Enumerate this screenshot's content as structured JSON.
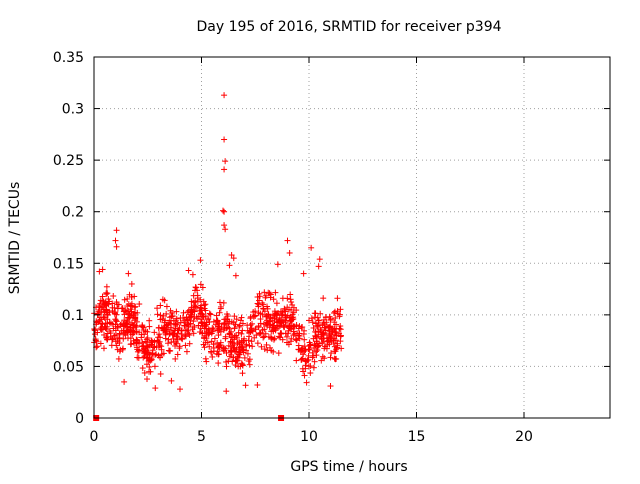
{
  "chart_data": {
    "type": "scatter",
    "title": "Day 195 of 2016, SRMTID for receiver p394",
    "xlabel": "GPS time / hours",
    "ylabel": "SRMTID / TECUs",
    "xlim": [
      0,
      24
    ],
    "ylim": [
      0,
      0.35
    ],
    "xticks": [
      0,
      5,
      10,
      15,
      20
    ],
    "xtick_labels": [
      "0",
      "5",
      "10",
      "15",
      "20"
    ],
    "yticks": [
      0,
      0.05,
      0.1,
      0.15,
      0.2,
      0.25,
      0.3,
      0.35
    ],
    "ytick_labels": [
      "0",
      "0.05",
      "0.1",
      "0.15",
      "0.2",
      "0.25",
      "0.3",
      "0.35"
    ],
    "grid": true,
    "marker": "+",
    "series_color": "#ff0000",
    "bulk": {
      "x_range": [
        0.0,
        11.5
      ],
      "y_range": [
        0.025,
        0.185
      ],
      "approx_count": 1100,
      "note": "dense scatter of SRMTID values mostly between 0.04 and 0.14 TECU"
    },
    "zero_markers_x": [
      0.1,
      8.7
    ],
    "points": [
      [
        6.05,
        0.313
      ],
      [
        6.05,
        0.27
      ],
      [
        6.1,
        0.249
      ],
      [
        6.05,
        0.241
      ],
      [
        6.0,
        0.201
      ],
      [
        6.05,
        0.2
      ],
      [
        6.05,
        0.187
      ],
      [
        6.1,
        0.183
      ],
      [
        1.05,
        0.182
      ],
      [
        1.0,
        0.172
      ],
      [
        1.05,
        0.166
      ],
      [
        9.0,
        0.172
      ],
      [
        10.1,
        0.165
      ],
      [
        9.1,
        0.16
      ],
      [
        6.4,
        0.158
      ],
      [
        6.5,
        0.155
      ],
      [
        4.95,
        0.153
      ],
      [
        10.5,
        0.154
      ],
      [
        6.3,
        0.148
      ],
      [
        8.55,
        0.149
      ],
      [
        10.45,
        0.147
      ],
      [
        0.4,
        0.144
      ],
      [
        4.4,
        0.143
      ],
      [
        0.25,
        0.142
      ],
      [
        4.6,
        0.139
      ],
      [
        1.6,
        0.14
      ],
      [
        9.75,
        0.14
      ],
      [
        6.6,
        0.138
      ],
      [
        4.0,
        0.028
      ],
      [
        2.85,
        0.029
      ],
      [
        6.15,
        0.026
      ],
      [
        7.6,
        0.032
      ],
      [
        11.0,
        0.031
      ],
      [
        1.4,
        0.035
      ],
      [
        3.6,
        0.036
      ]
    ]
  }
}
